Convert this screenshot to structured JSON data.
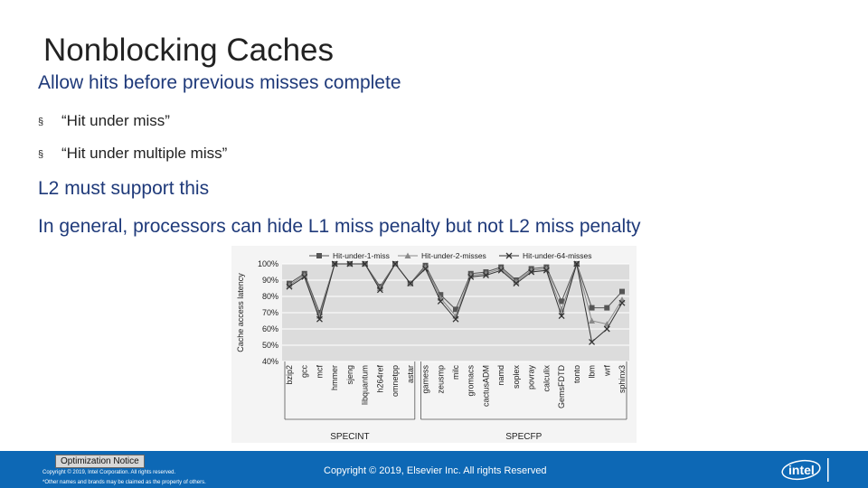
{
  "slide": {
    "title": "Nonblocking Caches",
    "line1": "Allow hits before previous misses complete",
    "bullets": [
      "“Hit under miss”",
      "“Hit under multiple miss”"
    ],
    "bullet_mark": "§",
    "line2": "L2 must support this",
    "line3": "In general, processors can hide L1 miss penalty but not L2 miss penalty"
  },
  "footer": {
    "optimization_notice": "Optimization Notice",
    "legal_line1": "Copyright © 2019, Intel Corporation. All rights reserved.",
    "legal_line2": "*Other names and brands may be claimed as the property of others.",
    "copyright": "Copyright © 2019, Elsevier Inc. All rights Reserved",
    "logo_text": "intel",
    "background": "#0d68b5"
  },
  "chart_data": {
    "type": "line",
    "ylabel": "Cache access latency",
    "ylim": [
      40,
      100
    ],
    "yticks": [
      "100%",
      "90%",
      "80%",
      "70%",
      "60%",
      "50%",
      "40%"
    ],
    "categories": [
      "bzip2",
      "gcc",
      "mcf",
      "hmmer",
      "sjeng",
      "libquantum",
      "h264ref",
      "omnetpp",
      "astar",
      "gamess",
      "zeusmp",
      "milc",
      "gromacs",
      "cactusADM",
      "namd",
      "soplex",
      "povray",
      "calculix",
      "GemsFDTD",
      "tonto",
      "lbm",
      "wrf",
      "sphinx3"
    ],
    "groups": [
      {
        "label": "SPECINT",
        "start": 0,
        "end": 8
      },
      {
        "label": "SPECFP",
        "start": 9,
        "end": 22
      }
    ],
    "series": [
      {
        "name": "Hit-under-1-miss",
        "marker": "square",
        "color": "#555555",
        "values": [
          88,
          94,
          70,
          100,
          100,
          100,
          86,
          100,
          88,
          99,
          81,
          72,
          94,
          95,
          98,
          90,
          97,
          98,
          77,
          100,
          73,
          73,
          83
        ]
      },
      {
        "name": "Hit-under-2-misses",
        "marker": "triangle",
        "color": "#8a8a8a",
        "values": [
          87,
          93,
          68,
          100,
          100,
          100,
          85,
          100,
          88,
          98,
          79,
          68,
          93,
          94,
          97,
          89,
          96,
          97,
          72,
          100,
          65,
          63,
          78
        ]
      },
      {
        "name": "Hit-under-64-misses",
        "marker": "x",
        "color": "#333333",
        "values": [
          86,
          92,
          66,
          100,
          100,
          100,
          84,
          100,
          88,
          97,
          77,
          66,
          92,
          93,
          96,
          88,
          95,
          96,
          68,
          100,
          52,
          60,
          76
        ]
      }
    ],
    "grid": true,
    "legend": "top"
  }
}
